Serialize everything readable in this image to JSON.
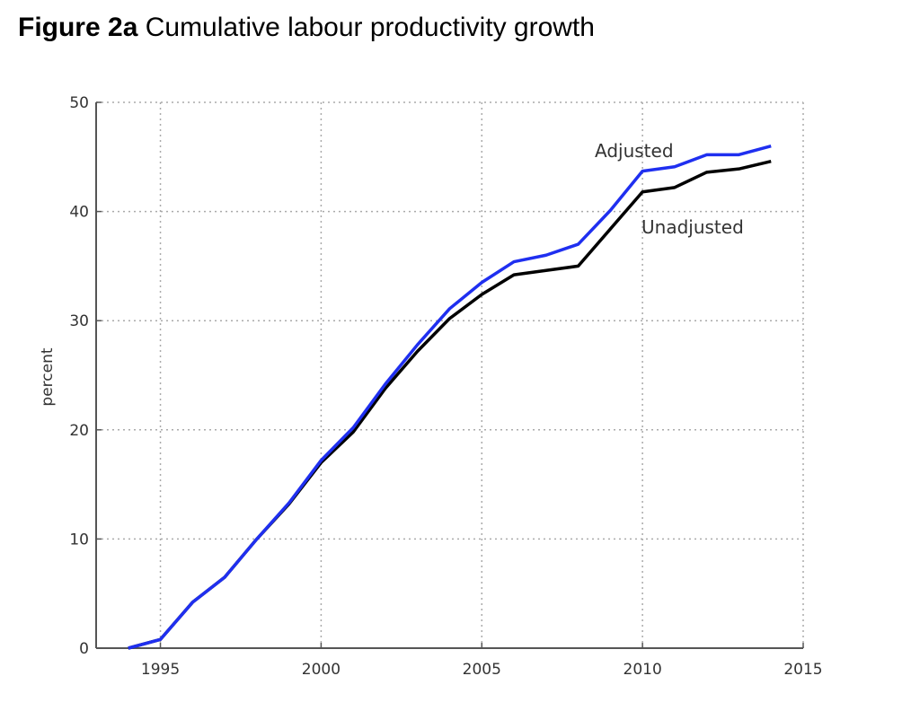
{
  "title": {
    "bold": "Figure 2a",
    "rest": "Cumulative labour productivity growth"
  },
  "chart_data": {
    "type": "line",
    "title": "Figure 2a Cumulative labour productivity growth",
    "xlabel": "",
    "ylabel": "percent",
    "xlim": [
      1993,
      2015
    ],
    "ylim": [
      0,
      50
    ],
    "xticks": [
      1995,
      2000,
      2005,
      2010,
      2015
    ],
    "yticks": [
      0,
      10,
      20,
      30,
      40,
      50
    ],
    "grid": true,
    "x": [
      1994,
      1995,
      1996,
      1997,
      1998,
      1999,
      2000,
      2001,
      2002,
      2003,
      2004,
      2005,
      2006,
      2007,
      2008,
      2009,
      2010,
      2011,
      2012,
      2013,
      2014
    ],
    "series": [
      {
        "name": "Adjusted",
        "color": "#1f2ff0",
        "values": [
          0,
          0.8,
          4.2,
          6.5,
          10.0,
          13.3,
          17.2,
          20.2,
          24.2,
          27.8,
          31.1,
          33.5,
          35.4,
          36.0,
          37.0,
          40.1,
          43.7,
          44.1,
          45.2,
          45.2,
          46.0
        ]
      },
      {
        "name": "Unadjusted",
        "color": "#000000",
        "values": [
          0,
          0.8,
          4.2,
          6.5,
          10.0,
          13.2,
          17.0,
          19.8,
          23.8,
          27.2,
          30.2,
          32.4,
          34.2,
          34.6,
          35.0,
          38.4,
          41.8,
          42.2,
          43.6,
          43.9,
          44.6
        ]
      }
    ]
  }
}
